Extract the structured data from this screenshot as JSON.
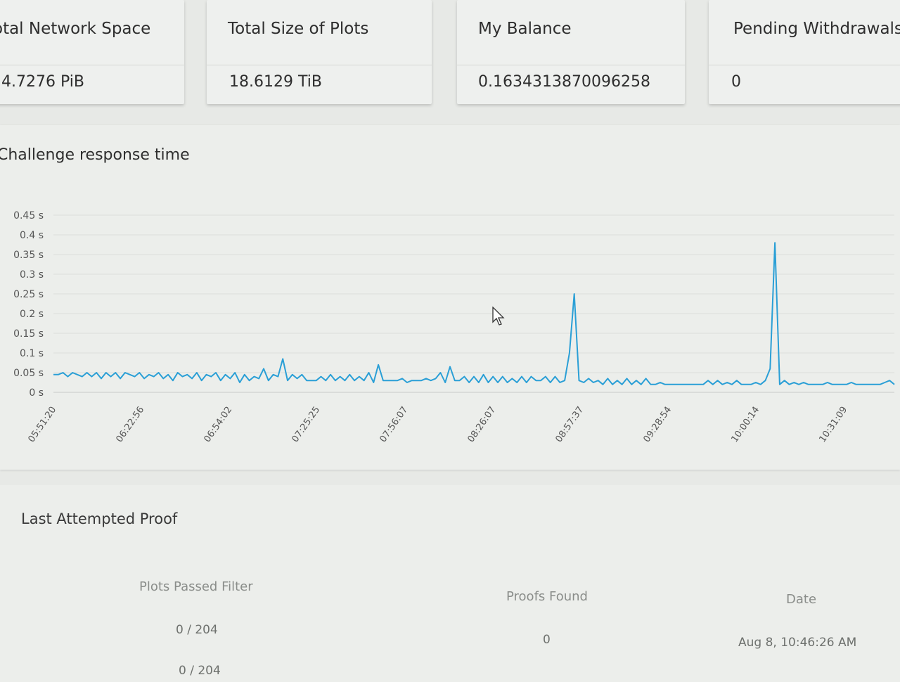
{
  "cards": [
    {
      "label": "otal Network Space",
      "value": "4.7276 PiB"
    },
    {
      "label": "Total Size of Plots",
      "value": "18.6129 TiB"
    },
    {
      "label": "My Balance",
      "value": "0.1634313870096258"
    },
    {
      "label": "Pending Withdrawals",
      "value": "0"
    }
  ],
  "chart": {
    "title": "Challenge response time"
  },
  "chart_data": {
    "type": "line",
    "title": "Challenge response time",
    "xlabel": "",
    "ylabel": "",
    "ylim": [
      0,
      0.45
    ],
    "y_ticks": [
      "0 s",
      "0.05 s",
      "0.1 s",
      "0.15 s",
      "0.2 s",
      "0.25 s",
      "0.3 s",
      "0.35 s",
      "0.4 s",
      "0.45 s"
    ],
    "x_ticks": [
      "05:51:20",
      "06:22:56",
      "06:54:02",
      "07:25:25",
      "07:56:07",
      "08:26:07",
      "08:57:37",
      "09:28:54",
      "10:00:14",
      "10:31:09"
    ],
    "grid": true,
    "series": [
      {
        "color": "#2a9fd6",
        "values": [
          0.045,
          0.045,
          0.05,
          0.04,
          0.05,
          0.045,
          0.04,
          0.05,
          0.04,
          0.05,
          0.035,
          0.05,
          0.04,
          0.05,
          0.035,
          0.05,
          0.045,
          0.04,
          0.05,
          0.035,
          0.045,
          0.04,
          0.05,
          0.035,
          0.045,
          0.03,
          0.05,
          0.04,
          0.045,
          0.035,
          0.05,
          0.03,
          0.045,
          0.04,
          0.05,
          0.03,
          0.045,
          0.035,
          0.05,
          0.025,
          0.045,
          0.03,
          0.04,
          0.035,
          0.06,
          0.03,
          0.045,
          0.04,
          0.085,
          0.03,
          0.045,
          0.035,
          0.045,
          0.03,
          0.03,
          0.03,
          0.04,
          0.03,
          0.045,
          0.03,
          0.04,
          0.03,
          0.045,
          0.03,
          0.04,
          0.03,
          0.05,
          0.025,
          0.07,
          0.03,
          0.03,
          0.03,
          0.03,
          0.035,
          0.025,
          0.03,
          0.03,
          0.03,
          0.035,
          0.03,
          0.035,
          0.05,
          0.025,
          0.065,
          0.03,
          0.03,
          0.04,
          0.025,
          0.04,
          0.025,
          0.045,
          0.025,
          0.04,
          0.025,
          0.04,
          0.025,
          0.035,
          0.025,
          0.04,
          0.025,
          0.04,
          0.03,
          0.03,
          0.04,
          0.025,
          0.04,
          0.025,
          0.03,
          0.1,
          0.25,
          0.03,
          0.025,
          0.035,
          0.025,
          0.03,
          0.02,
          0.035,
          0.02,
          0.03,
          0.02,
          0.035,
          0.02,
          0.03,
          0.02,
          0.035,
          0.02,
          0.02,
          0.025,
          0.02,
          0.02,
          0.02,
          0.02,
          0.02,
          0.02,
          0.02,
          0.02,
          0.02,
          0.03,
          0.02,
          0.03,
          0.02,
          0.025,
          0.02,
          0.03,
          0.02,
          0.02,
          0.02,
          0.025,
          0.02,
          0.03,
          0.06,
          0.38,
          0.02,
          0.03,
          0.02,
          0.025,
          0.02,
          0.025,
          0.02,
          0.02,
          0.02,
          0.02,
          0.025,
          0.02,
          0.02,
          0.02,
          0.02,
          0.025,
          0.02,
          0.02,
          0.02,
          0.02,
          0.02,
          0.02,
          0.025,
          0.03,
          0.02
        ]
      }
    ]
  },
  "proof": {
    "title": "Last Attempted Proof",
    "columns": [
      "Plots Passed Filter",
      "Proofs Found",
      "Date"
    ],
    "rows": [
      {
        "plots": "0 / 204",
        "proofs": "0",
        "date": "Aug 8, 10:46:26 AM"
      },
      {
        "plots": "0 / 204",
        "proofs": "",
        "date": ""
      }
    ]
  }
}
